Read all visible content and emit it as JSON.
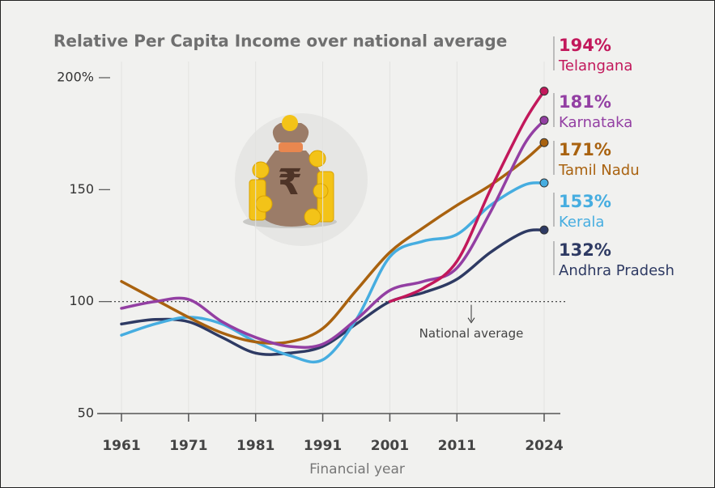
{
  "chart_data": {
    "type": "line",
    "title": "Relative Per Capita Income over national average",
    "x_label": "Financial year",
    "x": [
      1961,
      1966,
      1971,
      1976,
      1981,
      1986,
      1991,
      1996,
      2001,
      2006,
      2011,
      2016,
      2021,
      2024
    ],
    "xlim": [
      1961,
      2024
    ],
    "xticks": [
      1961,
      1971,
      1981,
      1991,
      2001,
      2011,
      2024
    ],
    "ylim": [
      50,
      200
    ],
    "yticks": [
      50,
      100,
      150,
      {
        "value": 200,
        "label": "200%"
      }
    ],
    "grid": true,
    "reference_line": {
      "value": 100,
      "label": "National average"
    },
    "series": [
      {
        "name": "Telangana",
        "color": "#c2185b",
        "values": [
          null,
          null,
          null,
          null,
          null,
          null,
          null,
          null,
          100,
          106,
          118,
          150,
          180,
          194
        ],
        "value_labels": [
          null,
          null,
          null,
          null,
          null,
          null,
          null,
          null,
          null,
          null,
          null,
          null,
          null,
          "194%"
        ]
      },
      {
        "name": "Karnataka",
        "color": "#933fa3",
        "values": [
          97,
          100,
          101,
          91,
          84,
          80,
          81,
          92,
          105,
          109,
          115,
          140,
          170,
          181
        ],
        "value_labels": [
          null,
          null,
          null,
          null,
          null,
          null,
          null,
          null,
          null,
          null,
          null,
          null,
          null,
          "181%"
        ]
      },
      {
        "name": "Tamil Nadu",
        "color": "#a9620f",
        "values": [
          109,
          101,
          93,
          86,
          82,
          82,
          88,
          105,
          122,
          133,
          143,
          152,
          163,
          171
        ],
        "value_labels": [
          null,
          null,
          null,
          null,
          null,
          null,
          null,
          null,
          null,
          null,
          null,
          null,
          null,
          "171%"
        ]
      },
      {
        "name": "Kerala",
        "color": "#46ade0",
        "values": [
          85,
          90,
          93,
          90,
          82,
          76,
          74,
          92,
          120,
          127,
          130,
          143,
          152,
          153
        ],
        "value_labels": [
          null,
          null,
          null,
          null,
          null,
          null,
          null,
          null,
          null,
          null,
          null,
          null,
          null,
          "153%"
        ]
      },
      {
        "name": "Andhra Pradesh",
        "color": "#2e3a63",
        "values": [
          90,
          92,
          91,
          84,
          77,
          77,
          80,
          90,
          100,
          104,
          110,
          122,
          131,
          132
        ],
        "value_labels": [
          null,
          null,
          null,
          null,
          null,
          null,
          null,
          null,
          null,
          null,
          null,
          null,
          null,
          "132%"
        ]
      }
    ]
  }
}
